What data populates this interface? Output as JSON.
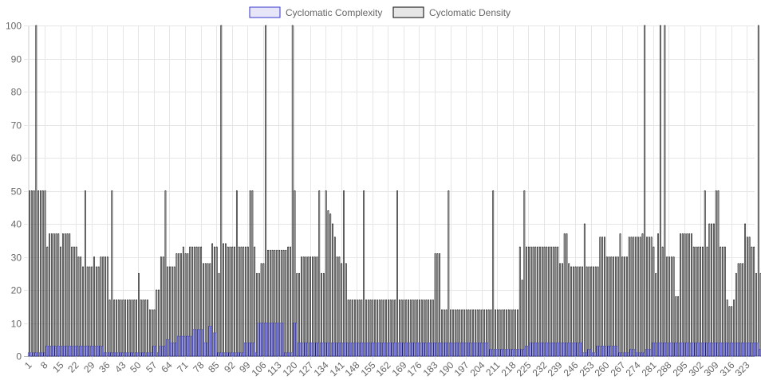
{
  "chart_data": {
    "type": "bar",
    "ylim": [
      0,
      100
    ],
    "y_ticks": [
      0,
      10,
      20,
      30,
      40,
      50,
      60,
      70,
      80,
      90,
      100
    ],
    "grid": true,
    "legend_position": "top-center",
    "x_start": 1,
    "x_end": 326,
    "x_tick_labels": [
      "1",
      "8",
      "15",
      "22",
      "29",
      "36",
      "43",
      "50",
      "57",
      "64",
      "71",
      "78",
      "85",
      "92",
      "99",
      "106",
      "113",
      "120",
      "127",
      "134",
      "141",
      "148",
      "155",
      "162",
      "169",
      "176",
      "183",
      "190",
      "197",
      "204",
      "211",
      "218",
      "225",
      "232",
      "239",
      "246",
      "253",
      "260",
      "267",
      "274",
      "281",
      "288",
      "295",
      "302",
      "309",
      "316",
      "323"
    ],
    "series": [
      {
        "name": "Cyclomatic Complexity",
        "fill": "#e6e6f8",
        "stroke": "#3333cc",
        "values": [
          1,
          1,
          1,
          1,
          1,
          1,
          1,
          1,
          3,
          3,
          3,
          3,
          3,
          3,
          3,
          3,
          3,
          3,
          3,
          3,
          3,
          3,
          3,
          3,
          3,
          3,
          3,
          3,
          3,
          3,
          3,
          3,
          3,
          3,
          1,
          1,
          1,
          1,
          1,
          1,
          1,
          1,
          1,
          1,
          1,
          1,
          1,
          1,
          1,
          1,
          1,
          1,
          1,
          1,
          1,
          1,
          3,
          3,
          1,
          3,
          3,
          3,
          5,
          5,
          4,
          4,
          4,
          6,
          6,
          6,
          6,
          6,
          6,
          6,
          8,
          8,
          8,
          8,
          8,
          4,
          4,
          9,
          9,
          7,
          7,
          1,
          1,
          1,
          1,
          1,
          1,
          1,
          1,
          1,
          1,
          1,
          1,
          4,
          4,
          4,
          4,
          4,
          1,
          10,
          10,
          10,
          10,
          10,
          10,
          10,
          10,
          10,
          10,
          10,
          10,
          1,
          1,
          1,
          1,
          10,
          10,
          4,
          4,
          4,
          4,
          4,
          4,
          4,
          4,
          4,
          4,
          4,
          4,
          4,
          4,
          4,
          4,
          4,
          4,
          4,
          4,
          4,
          4,
          4,
          4,
          4,
          4,
          4,
          4,
          4,
          4,
          4,
          4,
          4,
          4,
          4,
          4,
          4,
          4,
          4,
          4,
          4,
          4,
          4,
          4,
          4,
          4,
          4,
          4,
          4,
          4,
          4,
          4,
          4,
          4,
          4,
          4,
          4,
          4,
          4,
          4,
          4,
          4,
          4,
          4,
          4,
          4,
          4,
          4,
          4,
          4,
          4,
          4,
          4,
          4,
          4,
          4,
          4,
          4,
          4,
          4,
          4,
          4,
          4,
          4,
          4,
          4,
          2,
          2,
          2,
          2,
          2,
          2,
          2,
          2,
          2,
          2,
          2,
          2,
          2,
          2,
          2,
          2,
          3,
          3,
          4,
          4,
          4,
          4,
          4,
          4,
          4,
          4,
          4,
          4,
          4,
          4,
          4,
          4,
          4,
          4,
          4,
          4,
          4,
          4,
          4,
          4,
          4,
          4,
          1,
          1,
          2,
          2,
          1,
          1,
          3,
          3,
          3,
          3,
          3,
          3,
          3,
          3,
          3,
          3,
          1,
          1,
          1,
          1,
          1,
          2,
          2,
          2,
          1,
          1,
          1,
          1,
          2,
          2,
          2,
          4,
          4,
          4,
          4,
          4,
          4,
          4,
          4,
          4,
          4,
          4,
          4,
          4,
          4,
          4,
          4,
          4,
          4,
          4,
          4,
          4,
          4,
          4,
          4,
          4,
          4,
          4,
          4,
          4,
          4,
          4,
          4,
          4,
          4,
          4,
          4,
          4,
          4,
          4,
          4,
          4,
          4,
          4,
          4,
          4,
          4,
          4,
          4,
          2,
          2,
          2,
          2,
          4,
          4,
          4,
          4,
          1,
          1,
          1,
          1
        ]
      },
      {
        "name": "Cyclomatic Density",
        "fill": "#e6e6e6",
        "stroke": "#000000",
        "values": [
          50,
          50,
          50,
          100,
          50,
          50,
          50,
          50,
          33,
          37,
          37,
          37,
          37,
          37,
          33,
          37,
          37,
          37,
          37,
          33,
          33,
          33,
          30,
          30,
          27,
          50,
          27,
          27,
          27,
          30,
          27,
          27,
          30,
          30,
          30,
          30,
          17,
          50,
          17,
          17,
          17,
          17,
          17,
          17,
          17,
          17,
          17,
          17,
          17,
          25,
          17,
          17,
          17,
          17,
          14,
          14,
          14,
          20,
          20,
          30,
          30,
          50,
          27,
          27,
          27,
          27,
          31,
          31,
          31,
          33,
          31,
          31,
          33,
          33,
          33,
          33,
          33,
          33,
          28,
          28,
          28,
          28,
          34,
          33,
          33,
          25,
          100,
          34,
          34,
          33,
          33,
          33,
          33,
          50,
          33,
          33,
          33,
          33,
          33,
          50,
          50,
          33,
          25,
          25,
          28,
          28,
          100,
          32,
          32,
          32,
          32,
          32,
          32,
          32,
          32,
          32,
          33,
          33,
          100,
          50,
          25,
          25,
          30,
          30,
          30,
          30,
          30,
          30,
          30,
          30,
          50,
          25,
          25,
          50,
          44,
          43,
          40,
          36,
          30,
          30,
          28,
          50,
          28,
          17,
          17,
          17,
          17,
          17,
          17,
          17,
          50,
          17,
          17,
          17,
          17,
          17,
          17,
          17,
          17,
          17,
          17,
          17,
          17,
          17,
          17,
          50,
          17,
          17,
          17,
          17,
          17,
          17,
          17,
          17,
          17,
          17,
          17,
          17,
          17,
          17,
          17,
          17,
          31,
          31,
          31,
          14,
          14,
          14,
          50,
          14,
          14,
          14,
          14,
          14,
          14,
          14,
          14,
          14,
          14,
          14,
          14,
          14,
          14,
          14,
          14,
          14,
          14,
          14,
          50,
          14,
          14,
          14,
          14,
          14,
          14,
          14,
          14,
          14,
          14,
          14,
          33,
          23,
          50,
          33,
          33,
          33,
          33,
          33,
          33,
          33,
          33,
          33,
          33,
          33,
          33,
          33,
          33,
          33,
          28,
          28,
          37,
          37,
          28,
          27,
          27,
          27,
          27,
          27,
          27,
          40,
          27,
          27,
          27,
          27,
          27,
          27,
          36,
          36,
          36,
          30,
          30,
          30,
          30,
          30,
          30,
          37,
          30,
          30,
          30,
          36,
          36,
          36,
          36,
          36,
          36,
          37,
          100,
          36,
          36,
          36,
          33,
          25,
          37,
          100,
          33,
          100,
          30,
          30,
          30,
          30,
          18,
          18,
          37,
          37,
          37,
          37,
          37,
          37,
          33,
          33,
          33,
          33,
          33,
          50,
          33,
          40,
          40,
          40,
          50,
          50,
          33,
          33,
          33,
          17,
          15,
          15,
          17,
          25,
          28,
          28,
          28,
          40,
          36,
          36,
          33,
          33,
          25,
          100,
          25,
          25,
          33,
          33,
          33,
          33,
          33,
          33,
          33,
          33,
          33,
          33,
          33,
          33,
          33,
          36,
          36,
          33,
          33,
          33,
          33,
          50,
          25,
          36,
          36,
          33,
          33,
          38,
          50,
          33,
          33,
          30,
          30,
          30,
          30,
          30,
          30,
          25,
          25,
          25,
          25,
          25,
          25,
          25,
          25,
          33,
          33,
          25,
          25,
          25,
          50,
          50
        ]
      }
    ]
  }
}
